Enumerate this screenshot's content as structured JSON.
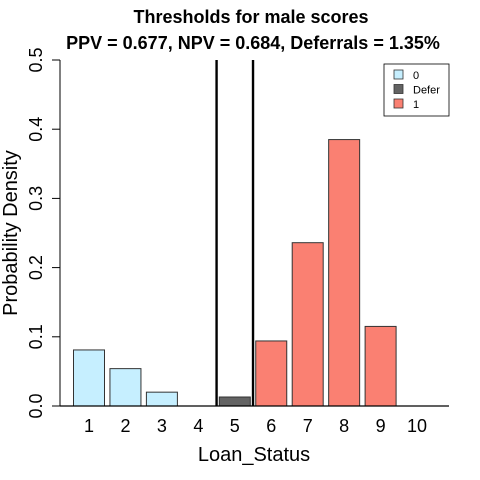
{
  "chart_data": {
    "type": "bar",
    "title": "Thresholds for male scores",
    "subtitle": "PPV = 0.677, NPV = 0.684,  Deferrals = 1.35%",
    "xlabel": "Loan_Status",
    "ylabel": "Probability Density",
    "categories": [
      "1",
      "2",
      "3",
      "4",
      "5",
      "6",
      "7",
      "8",
      "9",
      "10"
    ],
    "ylim": [
      0,
      0.5
    ],
    "yticks": [
      "0.0",
      "0.1",
      "0.2",
      "0.3",
      "0.4",
      "0.5"
    ],
    "bars": [
      {
        "category": "1",
        "value": 0.081,
        "group": "0"
      },
      {
        "category": "2",
        "value": 0.054,
        "group": "0"
      },
      {
        "category": "3",
        "value": 0.02,
        "group": "0"
      },
      {
        "category": "4",
        "value": 0.0,
        "group": "0"
      },
      {
        "category": "5",
        "value": 0.013,
        "group": "Defer"
      },
      {
        "category": "6",
        "value": 0.094,
        "group": "1"
      },
      {
        "category": "7",
        "value": 0.236,
        "group": "1"
      },
      {
        "category": "8",
        "value": 0.385,
        "group": "1"
      },
      {
        "category": "9",
        "value": 0.115,
        "group": "1"
      },
      {
        "category": "10",
        "value": 0.0,
        "group": "1"
      }
    ],
    "threshold_lines_x": [
      4.5,
      5.5
    ],
    "legend": {
      "position": "top-right",
      "entries": [
        {
          "label": "0",
          "color": "#C6EFFF"
        },
        {
          "label": "Defer",
          "color": "#636363"
        },
        {
          "label": "1",
          "color": "#FA8072"
        }
      ]
    },
    "colors": {
      "0": "#C6EFFF",
      "Defer": "#636363",
      "1": "#FA8072"
    },
    "grid": false
  }
}
